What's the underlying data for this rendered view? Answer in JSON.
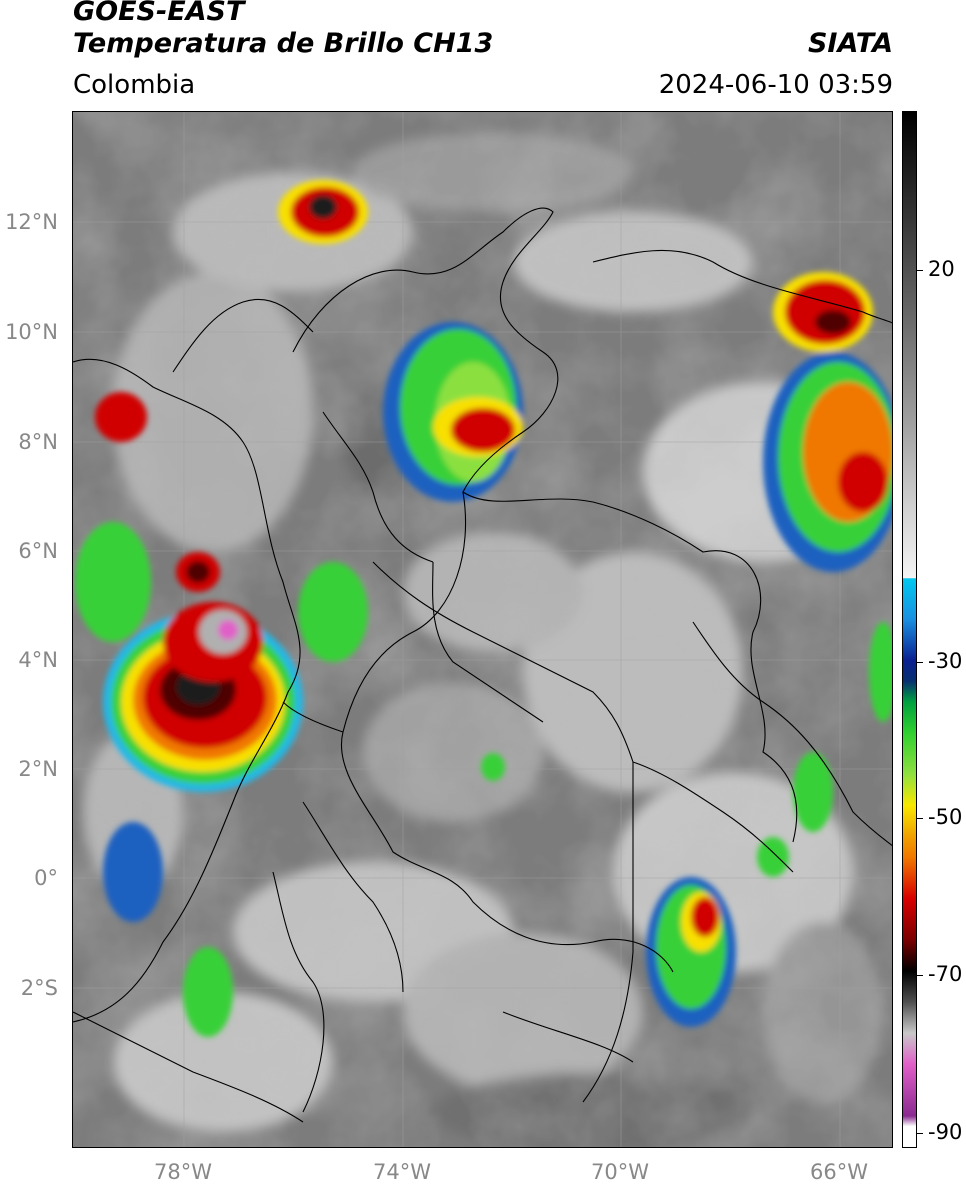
{
  "header": {
    "satellite": "GOES-EAST",
    "product": "Temperatura de Brillo CH13",
    "agency": "SIATA",
    "region": "Colombia",
    "datetime": "2024-06-10 03:59"
  },
  "axes": {
    "lat_labels": [
      "12°N",
      "10°N",
      "8°N",
      "6°N",
      "4°N",
      "2°N",
      "0°",
      "2°S"
    ],
    "lon_labels": [
      "78°W",
      "74°W",
      "70°W",
      "66°W"
    ]
  },
  "colorbar": {
    "tick_labels": [
      "20",
      "-30",
      "-50",
      "-70",
      "-90"
    ],
    "colors": {
      "gray_dark": "#1a1a1a",
      "gray_light": "#f0f0f0",
      "cyan": "#00c8f0",
      "blue": "#0a2090",
      "green": "#30d030",
      "yellow": "#f8e800",
      "orange": "#f07800",
      "red": "#d80000",
      "dark_red": "#500000",
      "magenta": "#e060c8",
      "purple": "#6a2a80"
    }
  }
}
